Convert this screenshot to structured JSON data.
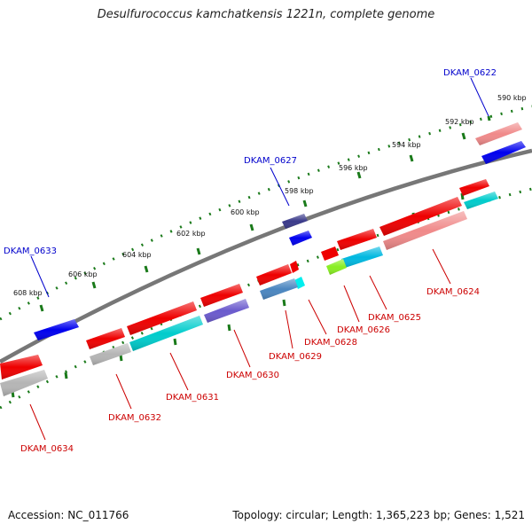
{
  "header": {
    "title": "Desulfurococcus kamchatkensis 1221n, complete genome"
  },
  "footer": {
    "accession": "Accession: NC_011766",
    "topology": "Topology: circular; Length: 1,365,223 bp; Genes: 1,521"
  },
  "scale_labels": [
    "590 kbp",
    "592 kbp",
    "594 kbp",
    "596 kbp",
    "598 kbp",
    "600 kbp",
    "602 kbp",
    "604 kbp",
    "606 kbp",
    "608 kbp"
  ],
  "genes_top": [
    {
      "name": "DKAM_0622",
      "color": "#0000cc"
    },
    {
      "name": "DKAM_0627",
      "color": "#0000cc"
    },
    {
      "name": "DKAM_0633",
      "color": "#0000cc"
    }
  ],
  "genes_bottom": [
    {
      "name": "DKAM_0624",
      "color": "#cc0000"
    },
    {
      "name": "DKAM_0625",
      "color": "#cc0000"
    },
    {
      "name": "DKAM_0626",
      "color": "#cc0000"
    },
    {
      "name": "DKAM_0628",
      "color": "#cc0000"
    },
    {
      "name": "DKAM_0629",
      "color": "#cc0000"
    },
    {
      "name": "DKAM_0630",
      "color": "#cc0000"
    },
    {
      "name": "DKAM_0631",
      "color": "#cc0000"
    },
    {
      "name": "DKAM_0632",
      "color": "#cc0000"
    },
    {
      "name": "DKAM_0634",
      "color": "#cc0000"
    }
  ],
  "colors": {
    "backbone": "#777777",
    "scale_ticks": "#1a7a1a",
    "feature_red": "#ee0000",
    "feature_blue": "#0000ee",
    "feature_pink": "#f08a8a",
    "feature_cyan": "#00cccc",
    "feature_grey": "#b5b5b5",
    "feature_purple": "#6a5acd",
    "feature_navy": "#3a3a8a",
    "feature_lime": "#88ee22"
  }
}
